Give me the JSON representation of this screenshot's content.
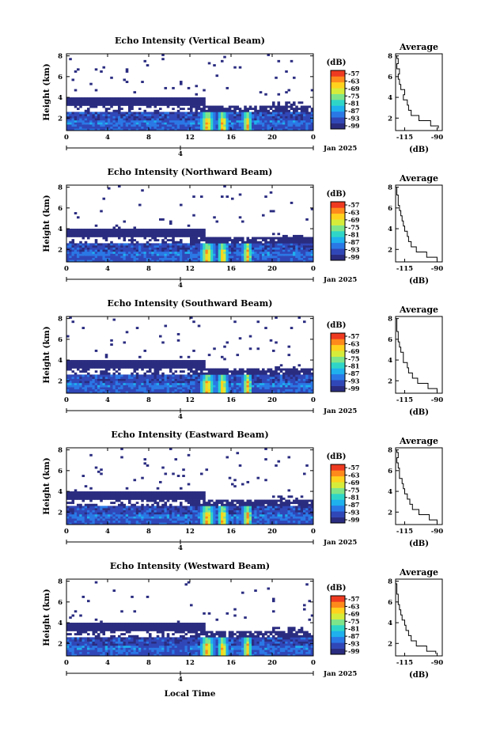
{
  "figure": {
    "footer_label": "Local Time",
    "colorbar_unit": "(dB)",
    "colorbar_ticks": [
      "-57",
      "-63",
      "-69",
      "-75",
      "-81",
      "-87",
      "-93",
      "-99"
    ],
    "colorbar_colors": [
      "#2a2c80",
      "#3047b8",
      "#2a78e6",
      "#1fb0ee",
      "#2fd6c8",
      "#7fe58a",
      "#d6ec3a",
      "#ffd21e",
      "#ff8a1c",
      "#ee3a20"
    ],
    "date_label": "Jan 2025"
  },
  "chart_data": [
    {
      "type": "heatmap",
      "title": "Echo Intensity (Vertical Beam)",
      "ylabel": "Height (km)",
      "x_ticks": [
        "0",
        "4",
        "8",
        "12",
        "16",
        "20",
        "0"
      ],
      "y_ticks": [
        "2",
        "4",
        "6",
        "8"
      ],
      "xlim": [
        0,
        24
      ],
      "ylim": [
        0.8,
        8.2
      ],
      "day_tick": "4",
      "profile": {
        "title": "Average",
        "xlabel": "(dB)",
        "x_ticks": [
          "-115",
          "-90"
        ],
        "xlim": [
          -122,
          -86
        ],
        "y_ticks": [
          "2",
          "4",
          "6",
          "8"
        ],
        "height_km": [
          1.0,
          1.5,
          2.0,
          2.5,
          3.0,
          3.5,
          4.0,
          4.5,
          5.0,
          5.5,
          6.0,
          6.5,
          7.0,
          7.5,
          8.0
        ],
        "db": [
          -89,
          -95,
          -104,
          -110,
          -112,
          -113,
          -116,
          -115,
          -118,
          -119,
          -120,
          -119,
          -121,
          -120,
          -121
        ]
      }
    },
    {
      "type": "heatmap",
      "title": "Echo Intensity (Northward Beam)",
      "ylabel": "Height (km)",
      "x_ticks": [
        "0",
        "4",
        "8",
        "12",
        "16",
        "20",
        "0"
      ],
      "y_ticks": [
        "2",
        "4",
        "6",
        "8"
      ],
      "xlim": [
        0,
        24
      ],
      "ylim": [
        0.8,
        8.2
      ],
      "day_tick": "4",
      "profile": {
        "title": "Average",
        "xlabel": "(dB)",
        "x_ticks": [
          "-115",
          "-90"
        ],
        "xlim": [
          -122,
          -86
        ],
        "y_ticks": [
          "2",
          "4",
          "6",
          "8"
        ],
        "height_km": [
          1.0,
          1.5,
          2.0,
          2.5,
          3.0,
          3.5,
          4.0,
          4.5,
          5.0,
          5.5,
          6.0,
          6.5,
          7.0,
          7.5,
          8.0
        ],
        "db": [
          -90,
          -98,
          -106,
          -110,
          -112,
          -113,
          -115,
          -116,
          -117,
          -118,
          -119,
          -120,
          -120,
          -121,
          -121
        ]
      }
    },
    {
      "type": "heatmap",
      "title": "Echo Intensity (Southward Beam)",
      "ylabel": "Height (km)",
      "x_ticks": [
        "0",
        "4",
        "8",
        "12",
        "16",
        "20",
        "0"
      ],
      "y_ticks": [
        "2",
        "4",
        "6",
        "8"
      ],
      "xlim": [
        0,
        24
      ],
      "ylim": [
        0.8,
        8.2
      ],
      "day_tick": "4",
      "profile": {
        "title": "Average",
        "xlabel": "(dB)",
        "x_ticks": [
          "-115",
          "-90"
        ],
        "xlim": [
          -122,
          -86
        ],
        "y_ticks": [
          "2",
          "4",
          "6",
          "8"
        ],
        "height_km": [
          1.0,
          1.5,
          2.0,
          2.5,
          3.0,
          3.5,
          4.0,
          4.5,
          5.0,
          5.5,
          6.0,
          6.5,
          7.0,
          7.5,
          8.0
        ],
        "db": [
          -90,
          -97,
          -105,
          -109,
          -112,
          -113,
          -116,
          -116,
          -118,
          -119,
          -120,
          -120,
          -121,
          -121,
          -121
        ]
      }
    },
    {
      "type": "heatmap",
      "title": "Echo Intensity (Eastward Beam)",
      "ylabel": "Height (km)",
      "x_ticks": [
        "0",
        "4",
        "8",
        "12",
        "16",
        "20",
        "0"
      ],
      "y_ticks": [
        "2",
        "4",
        "6",
        "8"
      ],
      "xlim": [
        0,
        24
      ],
      "ylim": [
        0.8,
        8.2
      ],
      "day_tick": "4",
      "profile": {
        "title": "Average",
        "xlabel": "(dB)",
        "x_ticks": [
          "-115",
          "-90"
        ],
        "xlim": [
          -122,
          -86
        ],
        "y_ticks": [
          "2",
          "4",
          "6",
          "8"
        ],
        "height_km": [
          1.0,
          1.5,
          2.0,
          2.5,
          3.0,
          3.5,
          4.0,
          4.5,
          5.0,
          5.5,
          6.0,
          6.5,
          7.0,
          7.5,
          8.0
        ],
        "db": [
          -90,
          -96,
          -104,
          -109,
          -111,
          -113,
          -115,
          -116,
          -117,
          -119,
          -119,
          -120,
          -121,
          -120,
          -121
        ]
      }
    },
    {
      "type": "heatmap",
      "title": "Echo Intensity (Westward Beam)",
      "ylabel": "Height (km)",
      "x_ticks": [
        "0",
        "4",
        "8",
        "12",
        "16",
        "20",
        "0"
      ],
      "y_ticks": [
        "2",
        "4",
        "6",
        "8"
      ],
      "xlim": [
        0,
        24
      ],
      "ylim": [
        0.8,
        8.2
      ],
      "day_tick": "4",
      "profile": {
        "title": "Average",
        "xlabel": "(dB)",
        "x_ticks": [
          "-115",
          "-90"
        ],
        "xlim": [
          -122,
          -86
        ],
        "y_ticks": [
          "2",
          "4",
          "6",
          "8"
        ],
        "height_km": [
          1.0,
          1.5,
          2.0,
          2.5,
          3.0,
          3.5,
          4.0,
          4.5,
          5.0,
          5.5,
          6.0,
          6.5,
          7.0,
          7.5,
          8.0
        ],
        "db": [
          -91,
          -98,
          -106,
          -110,
          -112,
          -114,
          -115,
          -117,
          -118,
          -119,
          -120,
          -120,
          -121,
          -121,
          -122
        ]
      }
    }
  ]
}
